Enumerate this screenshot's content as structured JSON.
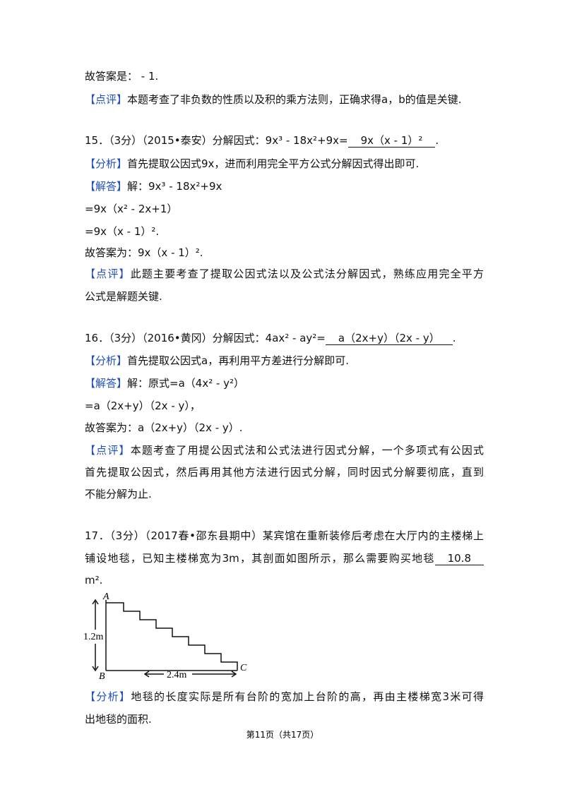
{
  "lines": [
    [
      "故答案是：  - 1."
    ],
    [
      "【点评】",
      "本题考查了非负数的性质以及积的乘方法则，正确求得a，b的值是关键."
    ],
    [
      "15．（3分）（2015•泰安）分解因式：9x³ - 18x²+9x=",
      "9x（x - 1）²",
      "."
    ],
    [
      "【分析】",
      "首先提取公因式9x，进而利用完全平方公式分解因式得出即可."
    ],
    [
      "【解答】",
      "解：9x³ - 18x²+9x"
    ],
    [
      "=9x（x² - 2x+1）"
    ],
    [
      "=9x（x - 1）²."
    ],
    [
      "故答案为：9x（x - 1）²."
    ],
    [
      "【点评】",
      "此题主要考查了提取公因式法以及公式法分解因式，熟练应用完全平方"
    ],
    [
      "公式是解题关键."
    ],
    [
      "16．（3分）（2016•黄冈）分解因式：4ax² - ay²=",
      "a（2x+y）（2x - y）",
      "."
    ],
    [
      "【分析】",
      "首先提取公因式a，再利用平方差进行分解即可."
    ],
    [
      "【解答】",
      "解：原式=a（4x² - y²）"
    ],
    [
      "=a（2x+y）（2x - y），"
    ],
    [
      "故答案为：a（2x+y）（2x - y）."
    ],
    [
      "【点评】",
      "本题考查了用提公因式法和公式法进行因式分解，一个多项式有公因式"
    ],
    [
      "首先提取公因式，然后再用其他方法进行因式分解，同时因式分解要彻底，直到"
    ],
    [
      "不能分解为止."
    ],
    [
      "17．（3分）（2017春•邵东县期中）某宾馆在重新装修后考虑在大厅内的主楼梯上"
    ],
    [
      "铺设地毯，已知主楼梯宽为3m，其剖面如图所示，那么需要购买地毯",
      "10.8"
    ],
    [
      "m²."
    ],
    [
      "【分析】",
      "地毯的长度实际是所有台阶的宽加上台阶的高，再由主楼梯宽3米可得"
    ],
    [
      "出地毯的面积."
    ]
  ],
  "figure": {
    "A": "A",
    "B": "B",
    "C": "C",
    "height": "1.2m",
    "width": "2.4m"
  },
  "footer": "第11页（共17页）"
}
